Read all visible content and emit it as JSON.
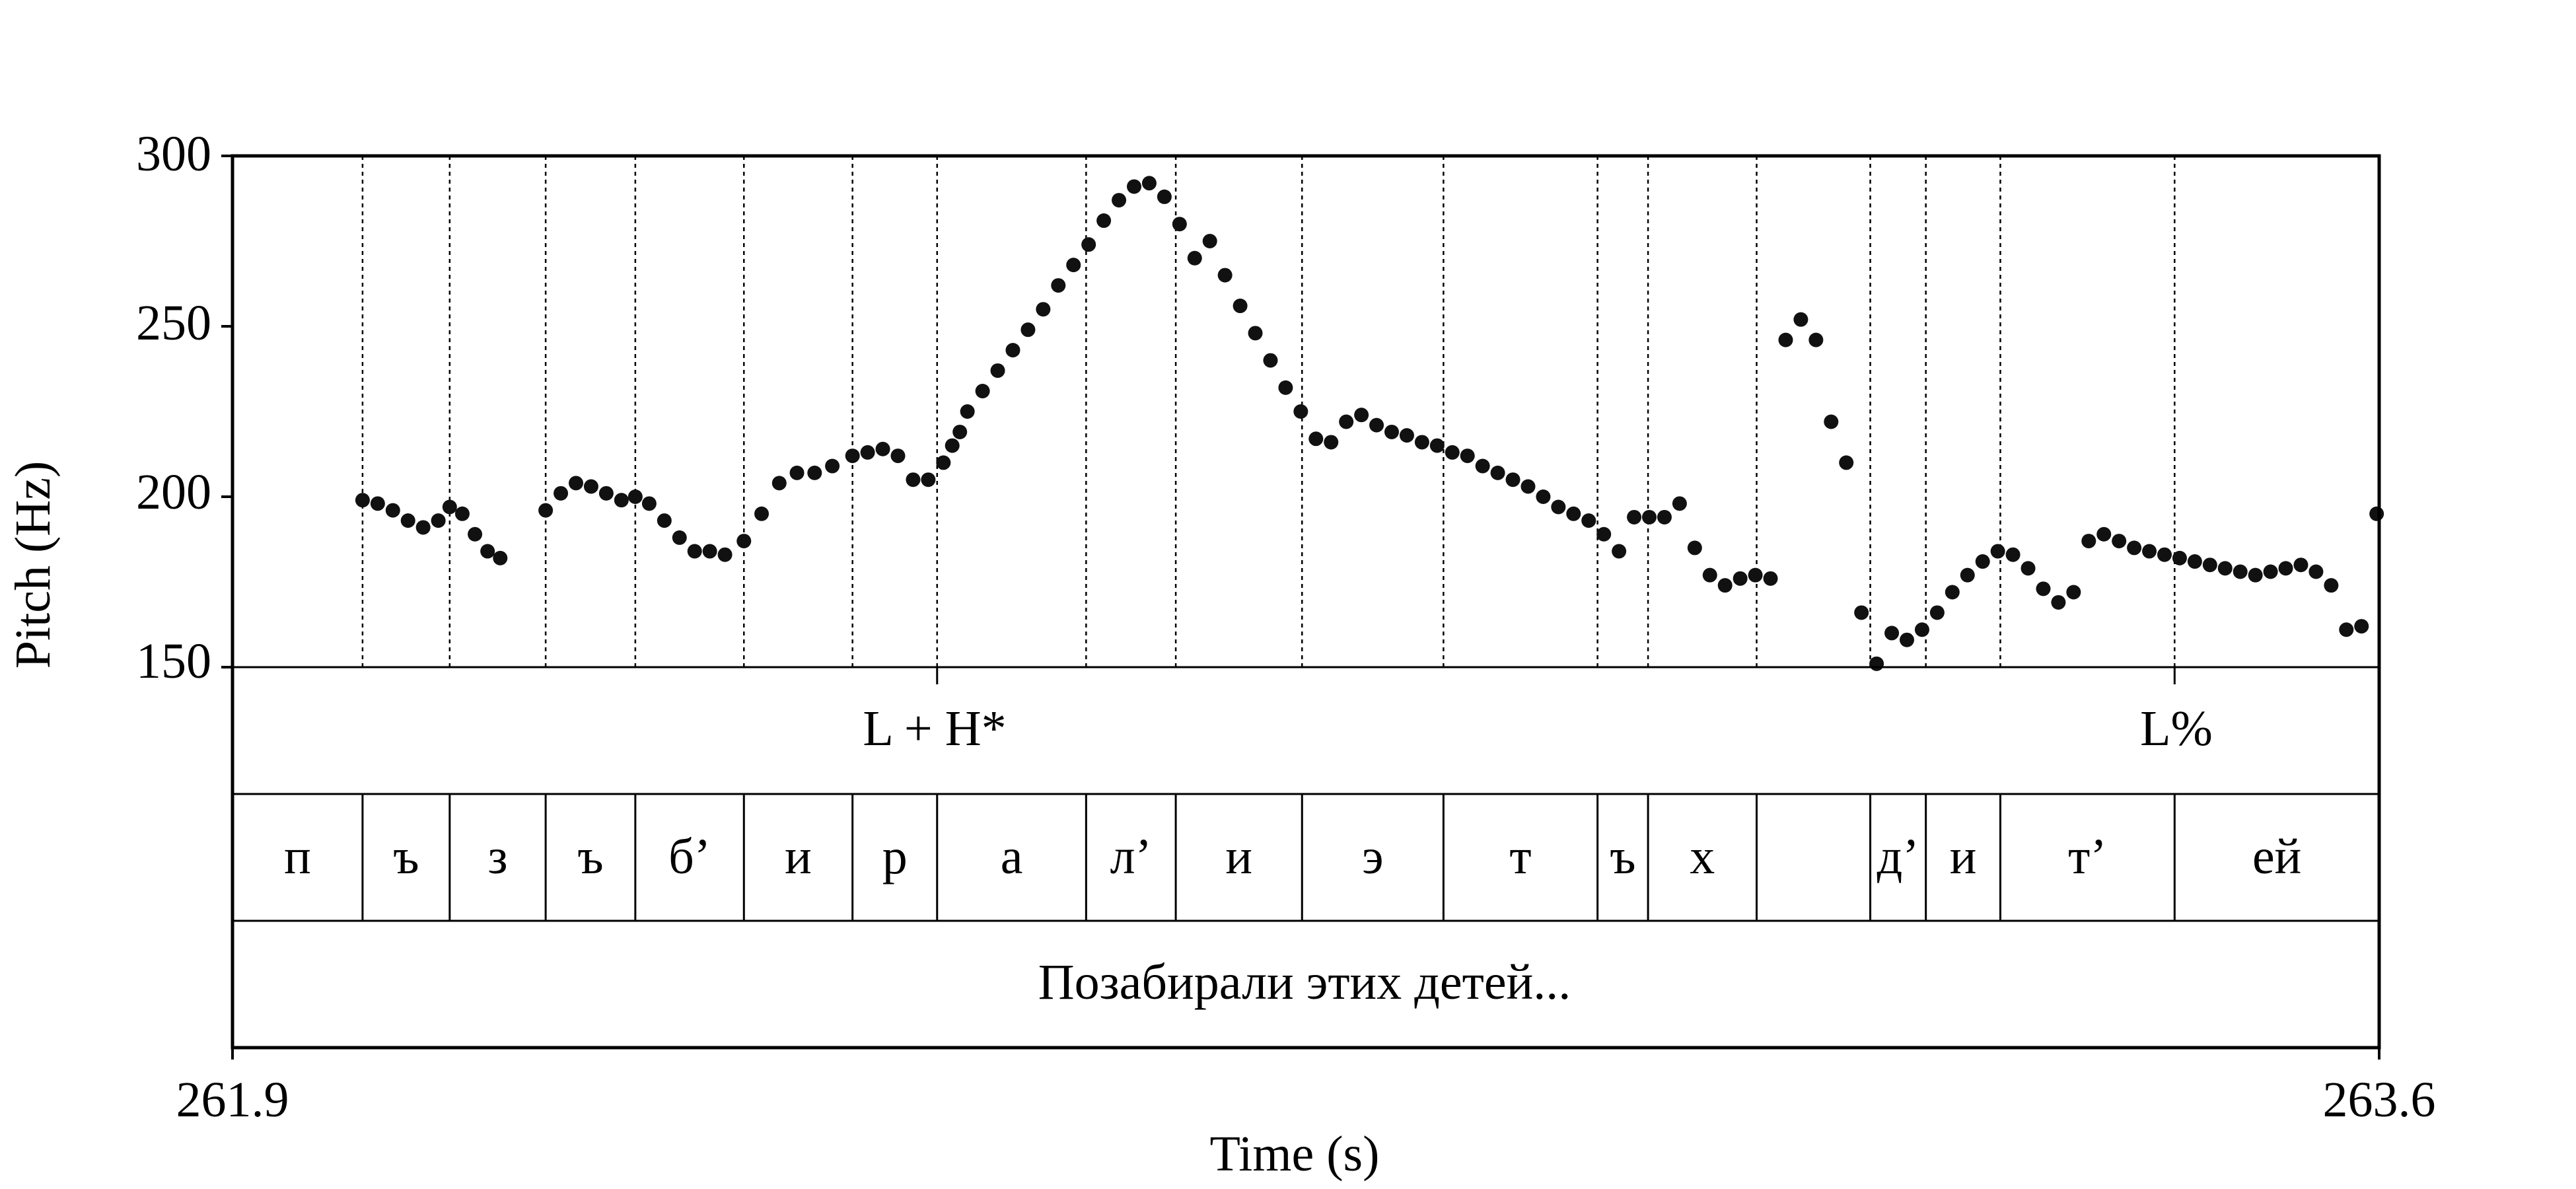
{
  "chart_data": {
    "type": "scatter",
    "title": "",
    "xlabel": "Time (s)",
    "ylabel": "Pitch (Hz)",
    "xlim": [
      261.9,
      263.6
    ],
    "ylim": [
      150,
      300
    ],
    "x_tick_labels": [
      "261.9",
      "263.6"
    ],
    "y_ticks": [
      300,
      250,
      200,
      150
    ],
    "y_tick_labels": [
      "300",
      "250",
      "200",
      "150"
    ],
    "segment_boundaries": [
      262.003,
      262.072,
      262.148,
      262.219,
      262.305,
      262.391,
      262.458,
      262.576,
      262.647,
      262.747,
      262.859,
      262.981,
      263.021,
      263.107,
      263.197,
      263.241,
      263.3,
      263.438
    ],
    "grid": "dotted vertical lines at segment boundaries",
    "tones_tier": [
      {
        "label": "L + H*",
        "time": 262.458
      },
      {
        "label": "L%",
        "time": 263.438
      }
    ],
    "segments_tier": [
      "п",
      "ъ",
      "з",
      "ъ",
      "б’",
      "и",
      "р",
      "а",
      "л’",
      "и",
      "э",
      "т",
      "ъ",
      "х",
      "",
      "д’",
      "и",
      "т’",
      "ей"
    ],
    "utterance_tier": "Позабирали этих детей...",
    "series": [
      {
        "color": "#111111",
        "x": [
          262.003,
          262.015,
          262.027,
          262.039,
          262.051,
          262.063,
          262.072,
          262.082,
          262.092,
          262.102,
          262.112,
          262.148,
          262.16,
          262.172,
          262.184,
          262.196,
          262.208,
          262.219,
          262.23,
          262.242,
          262.254,
          262.266,
          262.278,
          262.29,
          262.305,
          262.319,
          262.333,
          262.347,
          262.361,
          262.375,
          262.391,
          262.403,
          262.415,
          262.427,
          262.439,
          262.451,
          262.463,
          262.47,
          262.476,
          262.482,
          262.494,
          262.506,
          262.518,
          262.53,
          262.542,
          262.554,
          262.566,
          262.578,
          262.59,
          262.602,
          262.614,
          262.626,
          262.638,
          262.65,
          262.662,
          262.674,
          262.686,
          262.698,
          262.71,
          262.722,
          262.734,
          262.746,
          262.758,
          262.77,
          262.782,
          262.794,
          262.806,
          262.818,
          262.83,
          262.842,
          262.854,
          262.866,
          262.878,
          262.89,
          262.902,
          262.914,
          262.926,
          262.938,
          262.95,
          262.962,
          262.974,
          262.986,
          262.998,
          263.01,
          263.022,
          263.034,
          263.046,
          263.058,
          263.07,
          263.082,
          263.094,
          263.106,
          263.118,
          263.13,
          263.142,
          263.154,
          263.166,
          263.178,
          263.19,
          263.202,
          263.214,
          263.226,
          263.238,
          263.25,
          263.262,
          263.274,
          263.286,
          263.298,
          263.31,
          263.322,
          263.334,
          263.346,
          263.358,
          263.37,
          263.382,
          263.394,
          263.406,
          263.418,
          263.43,
          263.442,
          263.454,
          263.466,
          263.478,
          263.49,
          263.502,
          263.514,
          263.526,
          263.538,
          263.55,
          263.562,
          263.574,
          263.586,
          263.598
        ],
        "y": [
          199,
          198,
          196,
          193,
          191,
          193,
          197,
          195,
          189,
          184,
          182,
          196,
          201,
          204,
          203,
          201,
          199,
          200,
          198,
          193,
          188,
          184,
          184,
          183,
          187,
          195,
          204,
          207,
          207,
          209,
          212,
          213,
          214,
          212,
          205,
          205,
          210,
          215,
          219,
          225,
          231,
          237,
          243,
          249,
          255,
          262,
          268,
          274,
          281,
          287,
          291,
          292,
          288,
          280,
          270,
          275,
          265,
          256,
          248,
          240,
          232,
          225,
          217,
          216,
          222,
          224,
          221,
          219,
          218,
          216,
          215,
          213,
          212,
          209,
          207,
          205,
          203,
          200,
          197,
          195,
          193,
          189,
          184,
          194,
          194,
          194,
          198,
          185,
          177,
          174,
          176,
          177,
          176,
          246,
          252,
          246,
          222,
          210,
          166,
          151,
          160,
          158,
          161,
          166,
          172,
          177,
          181,
          184,
          183,
          179,
          173,
          169,
          172,
          187,
          189,
          187,
          185,
          184,
          183,
          182,
          181,
          180,
          179,
          178,
          177,
          178,
          179,
          180,
          178,
          174,
          161,
          162,
          195
        ]
      }
    ]
  }
}
